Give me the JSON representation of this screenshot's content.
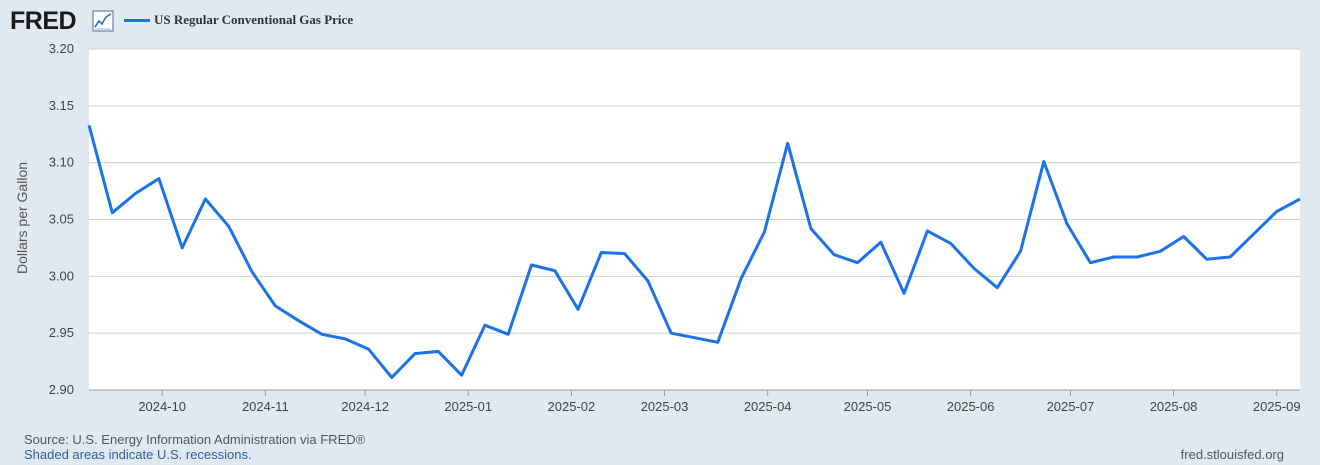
{
  "header": {
    "logo_text": "FRED",
    "logo_icon": "chart-line-icon",
    "legend_label": "US Regular Conventional Gas Price",
    "legend_color": "#1a73e8"
  },
  "footer": {
    "source": "Source: U.S. Energy Information Administration via FRED®",
    "recession_note": "Shaded areas indicate U.S. recessions.",
    "site": "fred.stlouisfed.org"
  },
  "chart_data": {
    "type": "line",
    "title": "",
    "xlabel": "",
    "ylabel": "Dollars per Gallon",
    "ylim": [
      2.9,
      3.2
    ],
    "yticks": [
      "3.20",
      "3.15",
      "3.10",
      "3.05",
      "3.00",
      "2.95",
      "2.90"
    ],
    "xticks": [
      "2024-10",
      "2024-11",
      "2024-12",
      "2025-01",
      "2025-02",
      "2025-03",
      "2025-04",
      "2025-05",
      "2025-06",
      "2025-07",
      "2025-08",
      "2025-09"
    ],
    "grid": true,
    "series": [
      {
        "name": "US Regular Conventional Gas Price",
        "color": "#1a73e8",
        "x": [
          "2024-09-09",
          "2024-09-16",
          "2024-09-23",
          "2024-09-30",
          "2024-10-07",
          "2024-10-14",
          "2024-10-21",
          "2024-10-28",
          "2024-11-04",
          "2024-11-11",
          "2024-11-18",
          "2024-11-25",
          "2024-12-02",
          "2024-12-09",
          "2024-12-16",
          "2024-12-23",
          "2024-12-30",
          "2025-01-06",
          "2025-01-13",
          "2025-01-20",
          "2025-01-27",
          "2025-02-03",
          "2025-02-10",
          "2025-02-17",
          "2025-02-24",
          "2025-03-03",
          "2025-03-10",
          "2025-03-17",
          "2025-03-24",
          "2025-03-31",
          "2025-04-07",
          "2025-04-14",
          "2025-04-21",
          "2025-04-28",
          "2025-05-05",
          "2025-05-12",
          "2025-05-19",
          "2025-05-26",
          "2025-06-02",
          "2025-06-09",
          "2025-06-16",
          "2025-06-23",
          "2025-06-30",
          "2025-07-07",
          "2025-07-14",
          "2025-07-21",
          "2025-07-28",
          "2025-08-04",
          "2025-08-11",
          "2025-08-18",
          "2025-08-25",
          "2025-09-01",
          "2025-09-08"
        ],
        "values": [
          3.133,
          3.056,
          3.073,
          3.086,
          3.025,
          3.068,
          3.044,
          3.004,
          2.974,
          2.961,
          2.949,
          2.945,
          2.936,
          2.911,
          2.932,
          2.934,
          2.913,
          2.957,
          2.949,
          3.01,
          3.005,
          2.971,
          3.021,
          3.02,
          2.996,
          2.95,
          2.946,
          2.942,
          2.998,
          3.039,
          3.117,
          3.042,
          3.019,
          3.012,
          3.03,
          2.985,
          3.04,
          3.029,
          3.007,
          2.99,
          3.022,
          3.101,
          3.046,
          3.012,
          3.017,
          3.017,
          3.022,
          3.035,
          3.015,
          3.017,
          3.037,
          3.057,
          3.068
        ]
      }
    ]
  }
}
